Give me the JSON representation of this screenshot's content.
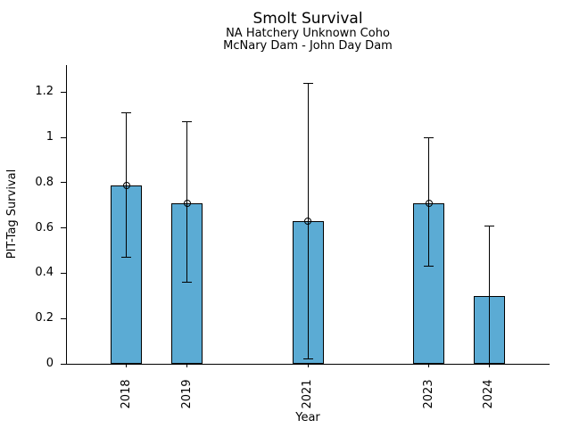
{
  "header": {
    "title": "Smolt Survival",
    "subtitle1": "NA Hatchery Unknown Coho",
    "subtitle2": "McNary Dam - John Day Dam"
  },
  "chart_data": {
    "type": "bar",
    "title": "Smolt Survival",
    "subtitles": [
      "NA Hatchery Unknown Coho",
      "McNary Dam - John Day Dam"
    ],
    "xlabel": "Year",
    "ylabel": "PIT-Tag Survival",
    "categories": [
      "2018",
      "2019",
      "2021",
      "2023",
      "2024"
    ],
    "x": [
      2018,
      2019,
      2021,
      2023,
      2024
    ],
    "values": [
      0.79,
      0.71,
      0.63,
      0.71,
      0.3
    ],
    "error_low": [
      0.47,
      0.36,
      0.02,
      0.43,
      0.0
    ],
    "error_high": [
      1.11,
      1.07,
      1.24,
      1.0,
      0.61
    ],
    "point_markers": [
      true,
      true,
      true,
      true,
      false
    ],
    "xlim": [
      2017,
      2025
    ],
    "ylim": [
      0,
      1.32
    ],
    "yticks": [
      0,
      0.2,
      0.4,
      0.6,
      0.8,
      1,
      1.2
    ],
    "ytick_labels": [
      "0",
      "0.2",
      "0.4",
      "0.6",
      "0.8",
      "1",
      "1.2"
    ],
    "grid": false,
    "legend": "none",
    "bar_color": "#5BABD4",
    "bar_edge_color": "#000000",
    "error_color": "#000000",
    "bar_width_fraction": 0.52
  }
}
